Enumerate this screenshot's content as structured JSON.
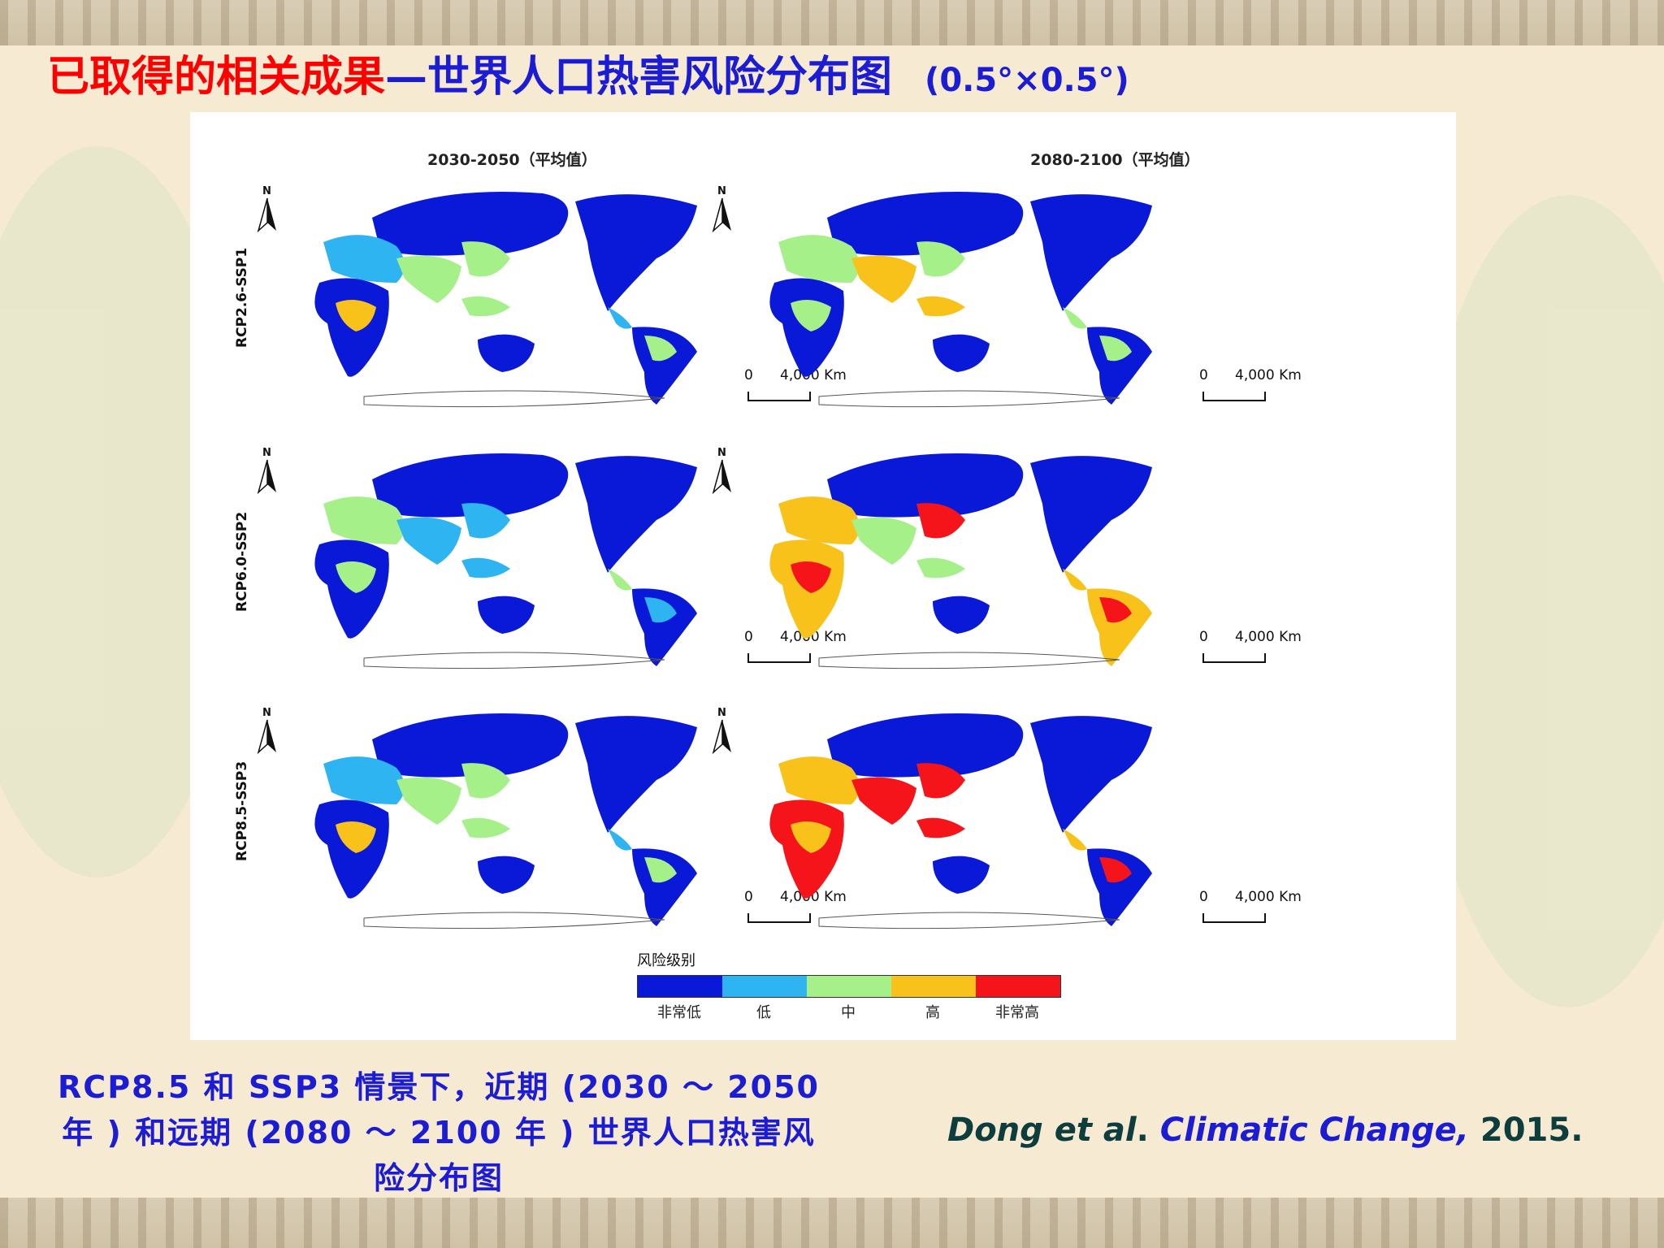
{
  "title": {
    "red_part": "已取得的相关成果",
    "dash": "—",
    "blue_part": "世界人口热害风险分布图",
    "resolution": "(0.5°×0.5°)"
  },
  "figure": {
    "columns": [
      "2030-2050（平均值）",
      "2080-2100（平均值）"
    ],
    "rows": [
      "RCP2.6-SSP1",
      "RCP6.0-SSP2",
      "RCP8.5-SSP3"
    ],
    "north_label": "N",
    "scale_zero": "0",
    "scale_distance": "4,000 Km",
    "legend": {
      "title": "风险级别",
      "levels": [
        {
          "label": "非常低",
          "color": "#0a18d8"
        },
        {
          "label": "低",
          "color": "#2eb4f0"
        },
        {
          "label": "中",
          "color": "#a6f08a"
        },
        {
          "label": "高",
          "color": "#f8c21a"
        },
        {
          "label": "非常高",
          "color": "#f4141a"
        }
      ]
    }
  },
  "caption": "RCP8.5 和 SSP3 情景下，近期 (2030 ～ 2050 年 ) 和远期 (2080 ～ 2100 年 ) 世界人口热害风险分布图",
  "citation": {
    "authors": "Dong et al",
    "dot1": ".",
    "journal": "Climatic Change",
    "comma": ",",
    "year": "2015",
    "dot2": "."
  }
}
